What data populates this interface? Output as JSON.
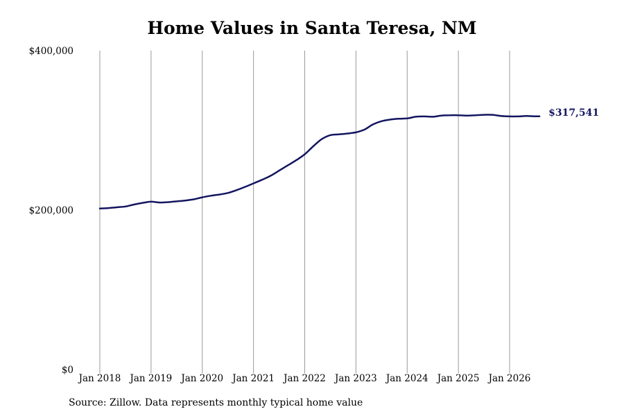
{
  "chart_data": {
    "type": "line",
    "title": "Home Values in Santa Teresa, NM",
    "xlabel": "",
    "ylabel": "",
    "ylim": [
      0,
      400000
    ],
    "xlim": [
      "2018-01",
      "2026-09"
    ],
    "y_ticks": [
      "$0",
      "$200,000",
      "$400,000"
    ],
    "y_tick_values": [
      0,
      200000,
      400000
    ],
    "x_ticks": [
      "Jan 2018",
      "Jan 2019",
      "Jan 2020",
      "Jan 2021",
      "Jan 2022",
      "Jan 2023",
      "Jan 2024",
      "Jan 2025",
      "Jan 2026"
    ],
    "x_tick_values": [
      "2018-01",
      "2019-01",
      "2020-01",
      "2021-01",
      "2022-01",
      "2023-01",
      "2024-01",
      "2025-01",
      "2026-01"
    ],
    "grid": "vertical",
    "line_color": "#131560",
    "series": [
      {
        "x": [
          "2018-01",
          "2018-03",
          "2018-05",
          "2018-07",
          "2018-09",
          "2018-11",
          "2019-01",
          "2019-03",
          "2019-05",
          "2019-07",
          "2019-09",
          "2019-11",
          "2020-01",
          "2020-03",
          "2020-05",
          "2020-07",
          "2020-09",
          "2020-11",
          "2021-01",
          "2021-03",
          "2021-05",
          "2021-07",
          "2021-09",
          "2021-11",
          "2022-01",
          "2022-03",
          "2022-05",
          "2022-07",
          "2022-09",
          "2022-11",
          "2023-01",
          "2023-03",
          "2023-05",
          "2023-07",
          "2023-09",
          "2023-11",
          "2024-01",
          "2024-03",
          "2024-05",
          "2024-07",
          "2024-09",
          "2024-11",
          "2025-01",
          "2025-03",
          "2025-05",
          "2025-07",
          "2025-09",
          "2025-11",
          "2026-01",
          "2026-03",
          "2026-05",
          "2026-07",
          "2026-08"
        ],
        "values": [
          202000,
          202500,
          203500,
          204500,
          207000,
          209000,
          210500,
          209500,
          210000,
          211000,
          212000,
          213500,
          216000,
          218000,
          219500,
          221500,
          225000,
          229000,
          233500,
          238000,
          243000,
          249500,
          256000,
          262500,
          270000,
          280000,
          289000,
          294000,
          295000,
          296000,
          297500,
          301000,
          307500,
          311500,
          313500,
          314500,
          315000,
          317000,
          317500,
          317000,
          318500,
          319000,
          319000,
          318500,
          319000,
          319500,
          319500,
          318000,
          317500,
          317500,
          318000,
          317600,
          317541
        ]
      }
    ],
    "end_label": "$317,541",
    "annotation": "Source: Zillow. Data represents monthly typical home value"
  }
}
